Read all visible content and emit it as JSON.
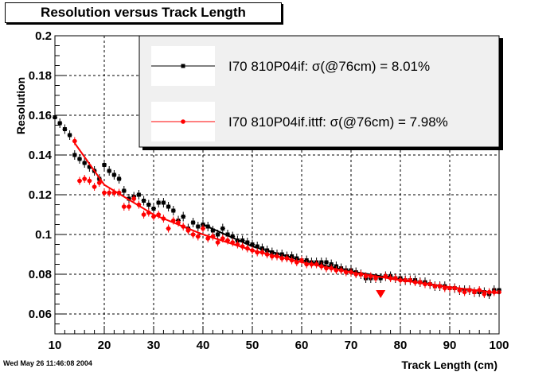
{
  "chart_data": {
    "type": "scatter",
    "title": "Resolution versus Track Length",
    "xlabel": "Track Length (cm)",
    "ylabel": "Resolution",
    "xlim": [
      10,
      100
    ],
    "ylim": [
      0.05,
      0.2
    ],
    "xticks": [
      10,
      20,
      30,
      40,
      50,
      60,
      70,
      80,
      90,
      100
    ],
    "xtick_labels": [
      "10",
      "20",
      "30",
      "40",
      "50",
      "60",
      "70",
      "80",
      "90",
      "100"
    ],
    "yticks": [
      0.06,
      0.08,
      0.1,
      0.12,
      0.14,
      0.16,
      0.18,
      0.2
    ],
    "ytick_labels": [
      "0.06",
      "0.08",
      "0.1",
      "0.12",
      "0.14",
      "0.16",
      "0.18",
      "0.2"
    ],
    "grid": true,
    "legend_placement": "top-right",
    "series": [
      {
        "name": "I70  810P04if:  σ(@76cm) =  8.01%",
        "color": "#000000",
        "marker": "square",
        "points": [
          [
            10,
            0.159
          ],
          [
            11,
            0.156
          ],
          [
            12,
            0.153
          ],
          [
            13,
            0.15
          ],
          [
            14,
            0.14
          ],
          [
            15,
            0.138
          ],
          [
            16,
            0.136
          ],
          [
            17,
            0.134
          ],
          [
            18,
            0.132
          ],
          [
            19,
            0.128
          ],
          [
            20,
            0.135
          ],
          [
            21,
            0.132
          ],
          [
            22,
            0.13
          ],
          [
            23,
            0.128
          ],
          [
            24,
            0.122
          ],
          [
            25,
            0.118
          ],
          [
            26,
            0.119
          ],
          [
            27,
            0.12
          ],
          [
            28,
            0.117
          ],
          [
            29,
            0.115
          ],
          [
            30,
            0.113
          ],
          [
            31,
            0.116
          ],
          [
            32,
            0.116
          ],
          [
            33,
            0.114
          ],
          [
            34,
            0.112
          ],
          [
            35,
            0.107
          ],
          [
            36,
            0.109
          ],
          [
            37,
            0.103
          ],
          [
            38,
            0.106
          ],
          [
            39,
            0.104
          ],
          [
            40,
            0.105
          ],
          [
            41,
            0.104
          ],
          [
            42,
            0.102
          ],
          [
            43,
            0.1
          ],
          [
            44,
            0.103
          ],
          [
            45,
            0.1
          ],
          [
            46,
            0.099
          ],
          [
            47,
            0.097
          ],
          [
            48,
            0.097
          ],
          [
            49,
            0.096
          ],
          [
            50,
            0.095
          ],
          [
            51,
            0.094
          ],
          [
            52,
            0.093
          ],
          [
            53,
            0.092
          ],
          [
            54,
            0.091
          ],
          [
            55,
            0.09
          ],
          [
            56,
            0.09
          ],
          [
            57,
            0.089
          ],
          [
            58,
            0.089
          ],
          [
            59,
            0.088
          ],
          [
            60,
            0.087
          ],
          [
            61,
            0.087
          ],
          [
            62,
            0.086
          ],
          [
            63,
            0.086
          ],
          [
            64,
            0.086
          ],
          [
            65,
            0.086
          ],
          [
            66,
            0.085
          ],
          [
            67,
            0.084
          ],
          [
            68,
            0.083
          ],
          [
            69,
            0.082
          ],
          [
            70,
            0.082
          ],
          [
            71,
            0.081
          ],
          [
            72,
            0.08
          ],
          [
            73,
            0.078
          ],
          [
            74,
            0.078
          ],
          [
            75,
            0.078
          ],
          [
            76,
            0.078
          ],
          [
            77,
            0.079
          ],
          [
            78,
            0.079
          ],
          [
            79,
            0.078
          ],
          [
            80,
            0.078
          ],
          [
            81,
            0.077
          ],
          [
            82,
            0.077
          ],
          [
            83,
            0.077
          ],
          [
            84,
            0.076
          ],
          [
            85,
            0.076
          ],
          [
            86,
            0.075
          ],
          [
            87,
            0.074
          ],
          [
            88,
            0.074
          ],
          [
            89,
            0.074
          ],
          [
            90,
            0.073
          ],
          [
            91,
            0.073
          ],
          [
            92,
            0.072
          ],
          [
            93,
            0.072
          ],
          [
            94,
            0.072
          ],
          [
            95,
            0.071
          ],
          [
            96,
            0.071
          ],
          [
            97,
            0.071
          ],
          [
            98,
            0.07
          ],
          [
            99,
            0.072
          ],
          [
            100,
            0.072
          ]
        ],
        "fit": [
          [
            40,
            0.105
          ],
          [
            50,
            0.094
          ],
          [
            60,
            0.087
          ],
          [
            70,
            0.0815
          ],
          [
            80,
            0.0775
          ],
          [
            90,
            0.0735
          ],
          [
            100,
            0.0705
          ]
        ]
      },
      {
        "name": "I70  810P04if.ittf:  σ(@76cm) =  7.98%",
        "color": "#ff0000",
        "marker": "circle",
        "points": [
          [
            14,
            0.147
          ],
          [
            15,
            0.127
          ],
          [
            16,
            0.128
          ],
          [
            17,
            0.127
          ],
          [
            18,
            0.124
          ],
          [
            19,
            0.126
          ],
          [
            20,
            0.121
          ],
          [
            21,
            0.121
          ],
          [
            22,
            0.121
          ],
          [
            23,
            0.121
          ],
          [
            24,
            0.114
          ],
          [
            25,
            0.114
          ],
          [
            26,
            0.118
          ],
          [
            27,
            0.115
          ],
          [
            28,
            0.11
          ],
          [
            29,
            0.111
          ],
          [
            30,
            0.109
          ],
          [
            31,
            0.11
          ],
          [
            32,
            0.108
          ],
          [
            33,
            0.103
          ],
          [
            34,
            0.107
          ],
          [
            35,
            0.106
          ],
          [
            36,
            0.104
          ],
          [
            37,
            0.102
          ],
          [
            38,
            0.1
          ],
          [
            39,
            0.099
          ],
          [
            40,
            0.103
          ],
          [
            41,
            0.098
          ],
          [
            42,
            0.099
          ],
          [
            43,
            0.096
          ],
          [
            44,
            0.098
          ],
          [
            45,
            0.097
          ],
          [
            46,
            0.096
          ],
          [
            47,
            0.095
          ],
          [
            48,
            0.094
          ],
          [
            49,
            0.093
          ],
          [
            50,
            0.092
          ],
          [
            51,
            0.091
          ],
          [
            52,
            0.091
          ],
          [
            53,
            0.09
          ],
          [
            54,
            0.089
          ],
          [
            55,
            0.089
          ],
          [
            56,
            0.088
          ],
          [
            57,
            0.088
          ],
          [
            58,
            0.087
          ],
          [
            59,
            0.086
          ],
          [
            60,
            0.087
          ],
          [
            61,
            0.085
          ],
          [
            62,
            0.085
          ],
          [
            63,
            0.085
          ],
          [
            64,
            0.084
          ],
          [
            65,
            0.083
          ],
          [
            66,
            0.083
          ],
          [
            67,
            0.082
          ],
          [
            68,
            0.082
          ],
          [
            69,
            0.081
          ],
          [
            70,
            0.081
          ],
          [
            71,
            0.08
          ],
          [
            72,
            0.08
          ],
          [
            73,
            0.079
          ],
          [
            74,
            0.079
          ],
          [
            75,
            0.078
          ],
          [
            77,
            0.079
          ],
          [
            78,
            0.078
          ],
          [
            79,
            0.078
          ],
          [
            80,
            0.077
          ],
          [
            81,
            0.077
          ],
          [
            82,
            0.077
          ],
          [
            83,
            0.076
          ],
          [
            84,
            0.076
          ],
          [
            85,
            0.075
          ],
          [
            86,
            0.075
          ],
          [
            87,
            0.074
          ],
          [
            88,
            0.074
          ],
          [
            89,
            0.073
          ],
          [
            90,
            0.073
          ],
          [
            91,
            0.073
          ],
          [
            92,
            0.072
          ],
          [
            93,
            0.071
          ],
          [
            94,
            0.072
          ],
          [
            95,
            0.071
          ],
          [
            96,
            0.072
          ],
          [
            97,
            0.07
          ],
          [
            98,
            0.071
          ],
          [
            99,
            0.071
          ],
          [
            100,
            0.071
          ]
        ],
        "fit": [
          [
            14,
            0.146
          ],
          [
            20,
            0.125
          ],
          [
            30,
            0.11
          ],
          [
            40,
            0.1
          ],
          [
            50,
            0.092
          ],
          [
            60,
            0.086
          ],
          [
            70,
            0.081
          ],
          [
            80,
            0.077
          ],
          [
            90,
            0.0735
          ],
          [
            100,
            0.0705
          ]
        ],
        "highlight": {
          "x": 76,
          "y": 0.07,
          "marker": "triangle-down"
        }
      }
    ]
  },
  "footer": {
    "timestamp": "Wed May 26 11:46:08 2004"
  }
}
